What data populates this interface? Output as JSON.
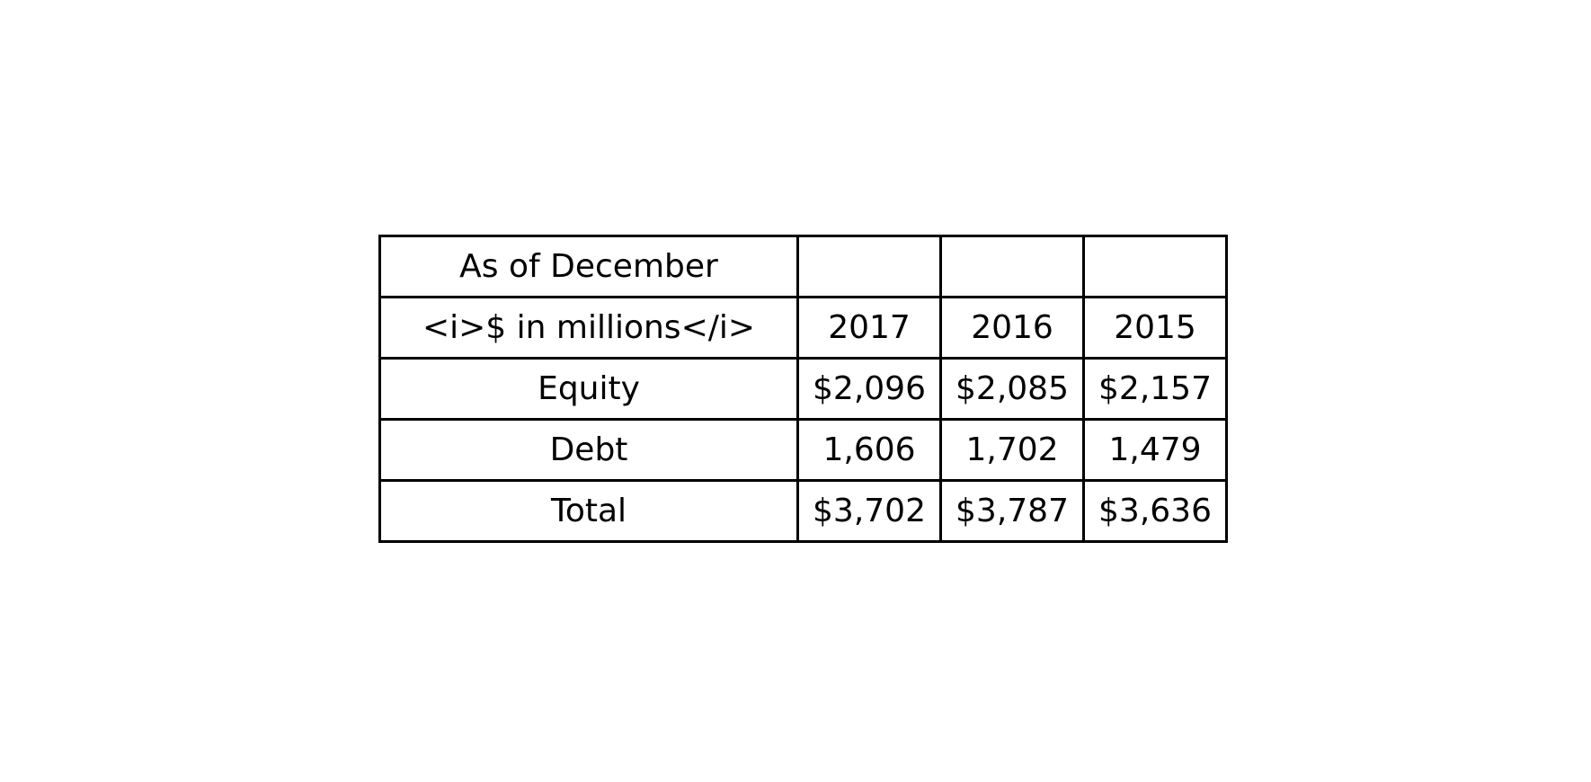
{
  "chart_data": {
    "type": "table",
    "header_rows": [
      [
        "As of December",
        "",
        "",
        ""
      ],
      [
        "<i>$ in millions</i>",
        "2017",
        "2016",
        "2015"
      ]
    ],
    "rows": [
      [
        "Equity",
        "$2,096",
        "$2,085",
        "$2,157"
      ],
      [
        "Debt",
        "1,606",
        "1,702",
        "1,479"
      ],
      [
        "Total",
        "$3,702",
        "$3,787",
        "$3,636"
      ]
    ]
  }
}
